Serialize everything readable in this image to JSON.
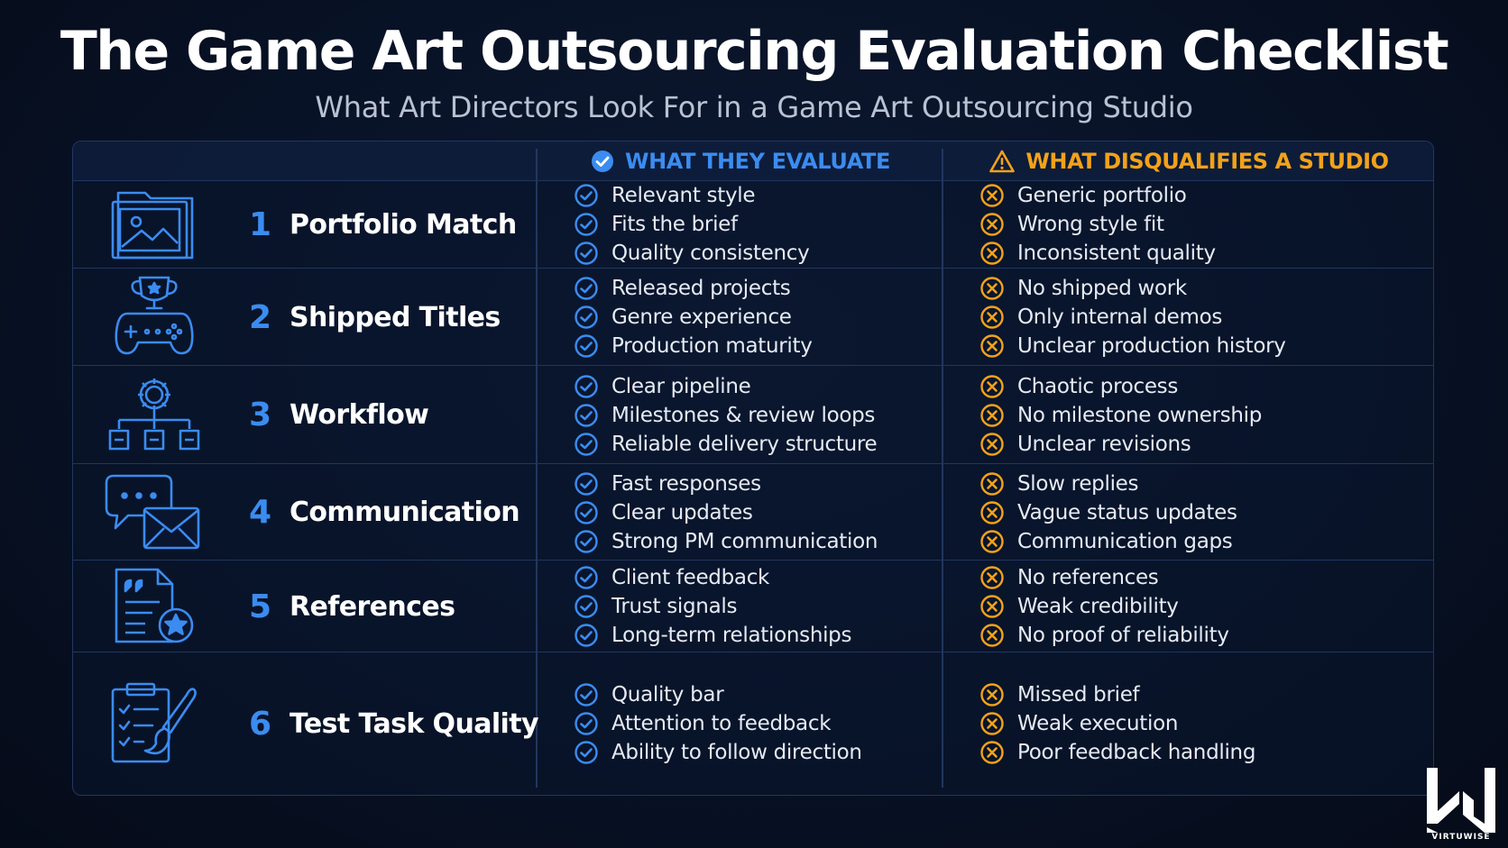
{
  "title": "The Game Art Outsourcing Evaluation Checklist",
  "subtitle": "What Art Directors Look For in a Game Art Outsourcing Studio",
  "header": {
    "evaluate_label": "WHAT THEY EVALUATE",
    "disqualify_label": "WHAT DISQUALIFIES A STUDIO"
  },
  "colors": {
    "accent_blue": "#3b8cf0",
    "accent_orange": "#f2a21a",
    "background": "#081226"
  },
  "rows": [
    {
      "number": "1",
      "title": "Portfolio Match",
      "icon": "image-folder-icon",
      "evaluate": [
        "Relevant style",
        "Fits the brief",
        "Quality consistency"
      ],
      "disqualify": [
        "Generic portfolio",
        "Wrong style fit",
        "Inconsistent quality"
      ]
    },
    {
      "number": "2",
      "title": "Shipped Titles",
      "icon": "trophy-gamepad-icon",
      "evaluate": [
        "Released projects",
        "Genre experience",
        "Production maturity"
      ],
      "disqualify": [
        "No shipped work",
        "Only internal demos",
        "Unclear production history"
      ]
    },
    {
      "number": "3",
      "title": "Workflow",
      "icon": "gear-hierarchy-icon",
      "evaluate": [
        "Clear pipeline",
        "Milestones & review loops",
        "Reliable delivery structure"
      ],
      "disqualify": [
        "Chaotic process",
        "No milestone ownership",
        "Unclear revisions"
      ]
    },
    {
      "number": "4",
      "title": "Communication",
      "icon": "chat-envelope-icon",
      "evaluate": [
        "Fast responses",
        "Clear updates",
        "Strong PM communication"
      ],
      "disqualify": [
        "Slow replies",
        "Vague status updates",
        "Communication gaps"
      ]
    },
    {
      "number": "5",
      "title": "References",
      "icon": "document-star-icon",
      "evaluate": [
        "Client feedback",
        "Trust signals",
        "Long-term relationships"
      ],
      "disqualify": [
        "No references",
        "Weak credibility",
        "No proof of reliability"
      ]
    },
    {
      "number": "6",
      "title": "Test Task Quality",
      "icon": "clipboard-brush-icon",
      "evaluate": [
        "Quality bar",
        "Attention to feedback",
        "Ability to follow direction"
      ],
      "disqualify": [
        "Missed brief",
        "Weak execution",
        "Poor feedback handling"
      ]
    }
  ],
  "logo": {
    "icon": "virtuwise-logo-icon",
    "wordmark": "VIRTUWISE"
  }
}
